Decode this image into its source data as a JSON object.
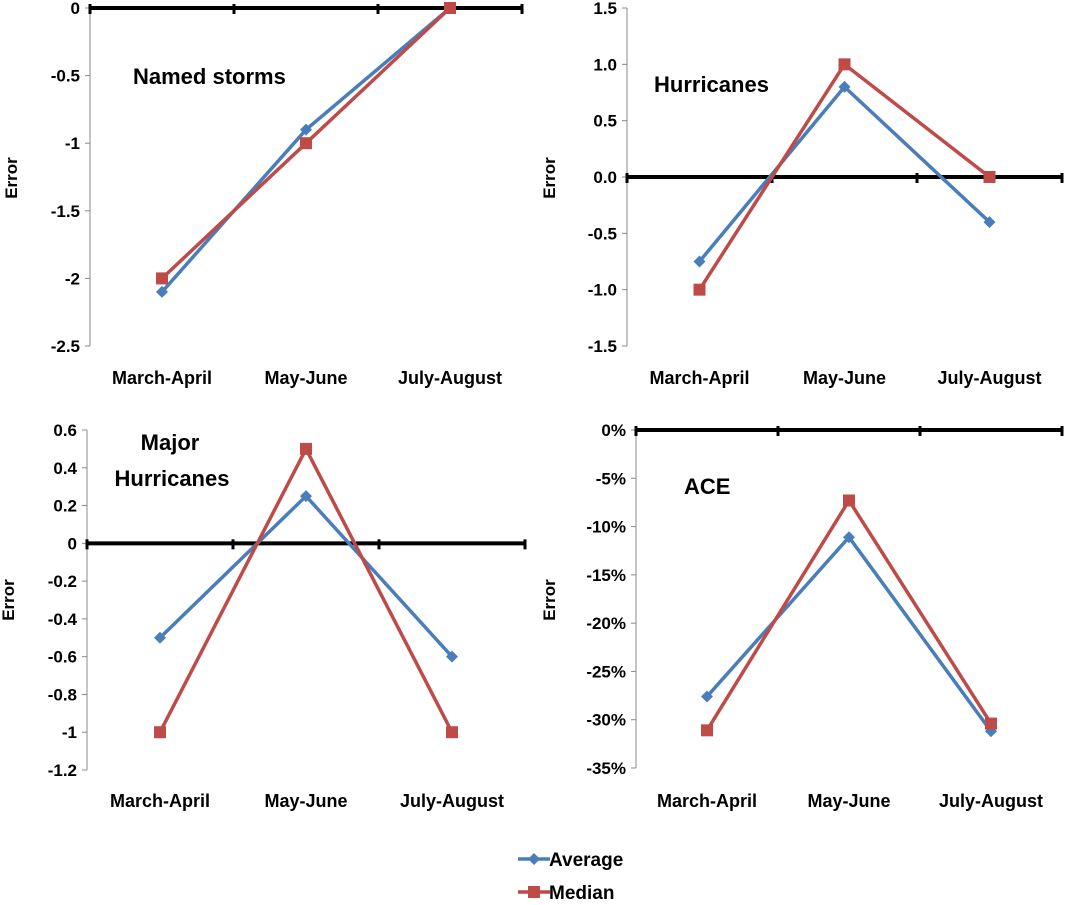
{
  "colors": {
    "average": "#4a7ebb",
    "median": "#be4b48",
    "axis": "#000000"
  },
  "legend": {
    "placement": "bottom-center",
    "entries": [
      "Average",
      "Median"
    ]
  },
  "chart_data": [
    {
      "type": "line",
      "title": [
        "Named storms"
      ],
      "ylabel": "Error",
      "xlabel": "",
      "categories": [
        "March-April",
        "May-June",
        "July-August"
      ],
      "ylim": [
        -2.5,
        0
      ],
      "yticks": [
        0,
        -0.5,
        -1,
        -1.5,
        -2,
        -2.5
      ],
      "ytick_labels": [
        "0",
        "-0.5",
        "-1",
        "-1.5",
        "-2",
        "-2.5"
      ],
      "series": [
        {
          "name": "Average",
          "values": [
            -2.1,
            -0.9,
            0.0
          ]
        },
        {
          "name": "Median",
          "values": [
            -2.0,
            -1.0,
            0.0
          ]
        }
      ],
      "grid": false
    },
    {
      "type": "line",
      "title": [
        "Hurricanes"
      ],
      "ylabel": "Error",
      "xlabel": "",
      "categories": [
        "March-April",
        "May-June",
        "July-August"
      ],
      "ylim": [
        -1.5,
        1.5
      ],
      "yticks": [
        1.5,
        1.0,
        0.5,
        0.0,
        -0.5,
        -1.0,
        -1.5
      ],
      "ytick_labels": [
        "1.5",
        "1.0",
        "0.5",
        "0.0",
        "-0.5",
        "-1.0",
        "-1.5"
      ],
      "series": [
        {
          "name": "Average",
          "values": [
            -0.75,
            0.8,
            -0.4
          ]
        },
        {
          "name": "Median",
          "values": [
            -1.0,
            1.0,
            0.0
          ]
        }
      ],
      "grid": false
    },
    {
      "type": "line",
      "title": [
        "Major",
        "Hurricanes"
      ],
      "ylabel": "Error",
      "xlabel": "",
      "categories": [
        "March-April",
        "May-June",
        "July-August"
      ],
      "ylim": [
        -1.2,
        0.6
      ],
      "yticks": [
        0.6,
        0.4,
        0.2,
        0,
        -0.2,
        -0.4,
        -0.6,
        -0.8,
        -1,
        -1.2
      ],
      "ytick_labels": [
        "0.6",
        "0.4",
        "0.2",
        "0",
        "-0.2",
        "-0.4",
        "-0.6",
        "-0.8",
        "-1",
        "-1.2"
      ],
      "series": [
        {
          "name": "Average",
          "values": [
            -0.5,
            0.25,
            -0.6
          ]
        },
        {
          "name": "Median",
          "values": [
            -1.0,
            0.5,
            -1.0
          ]
        }
      ],
      "grid": false
    },
    {
      "type": "line",
      "title": [
        "ACE"
      ],
      "ylabel": "Error",
      "xlabel": "",
      "categories": [
        "March-April",
        "May-June",
        "July-August"
      ],
      "ylim": [
        -35,
        0
      ],
      "yticks": [
        0,
        -5,
        -10,
        -15,
        -20,
        -25,
        -30,
        -35
      ],
      "ytick_labels": [
        "0%",
        "-5%",
        "-10%",
        "-15%",
        "-20%",
        "-25%",
        "-30%",
        "-35%"
      ],
      "series": [
        {
          "name": "Average",
          "values": [
            -27.6,
            -11.1,
            -31.2
          ]
        },
        {
          "name": "Median",
          "values": [
            -31.1,
            -7.3,
            -30.4
          ]
        }
      ],
      "grid": false
    }
  ]
}
